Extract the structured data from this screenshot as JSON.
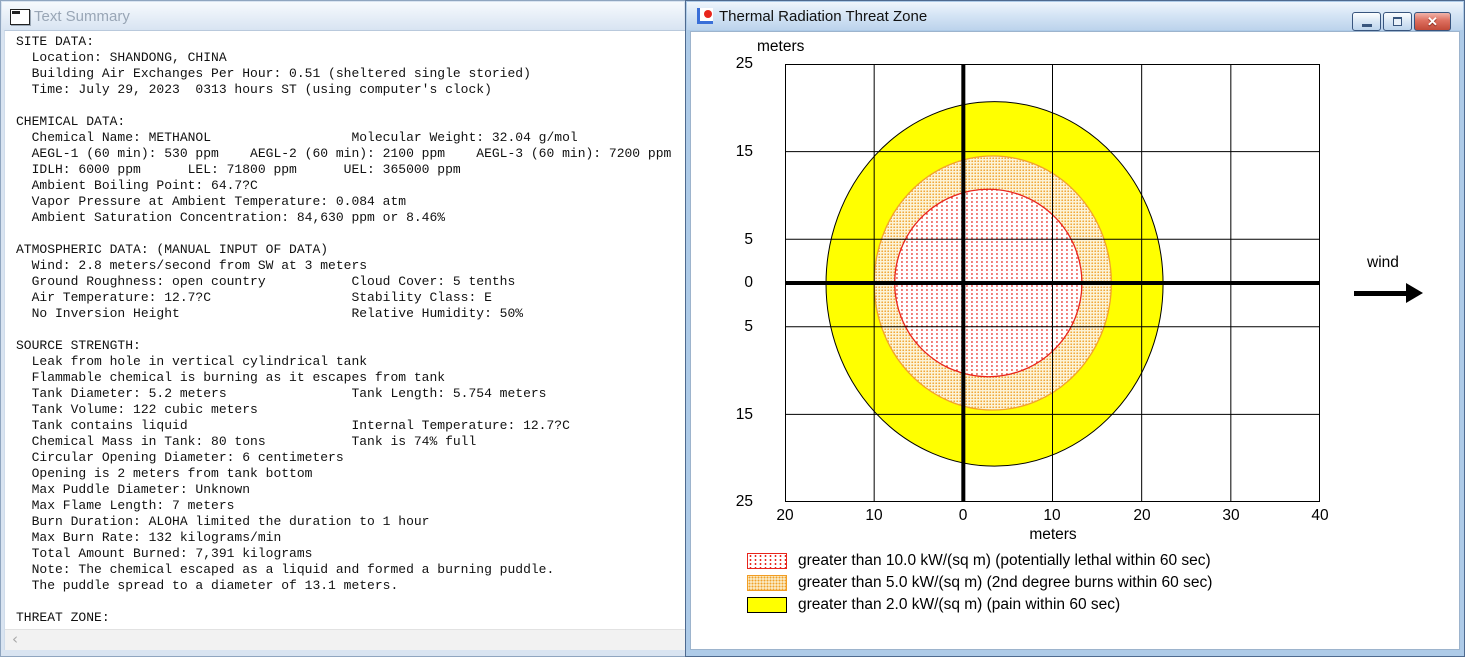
{
  "theme": {
    "active_titlebar": "#bcd3ec",
    "inactive_titlebar": "#d8e4f2",
    "close_button_red": "#c14a39",
    "zone_yellow": "#ffff00",
    "zone_orange": "#f2a32a",
    "zone_red": "#e8251c"
  },
  "left_window": {
    "title": "Text Summary",
    "scroll_left_glyph": "‹",
    "summary_lines": [
      "SITE DATA:",
      "  Location: SHANDONG, CHINA",
      "  Building Air Exchanges Per Hour: 0.51 (sheltered single storied)",
      "  Time: July 29, 2023  0313 hours ST (using computer's clock)",
      "",
      "CHEMICAL DATA:",
      "  Chemical Name: METHANOL                  Molecular Weight: 32.04 g/mol",
      "  AEGL-1 (60 min): 530 ppm    AEGL-2 (60 min): 2100 ppm    AEGL-3 (60 min): 7200 ppm",
      "  IDLH: 6000 ppm      LEL: 71800 ppm      UEL: 365000 ppm",
      "  Ambient Boiling Point: 64.7?C",
      "  Vapor Pressure at Ambient Temperature: 0.084 atm",
      "  Ambient Saturation Concentration: 84,630 ppm or 8.46%",
      "",
      "ATMOSPHERIC DATA: (MANUAL INPUT OF DATA)",
      "  Wind: 2.8 meters/second from SW at 3 meters",
      "  Ground Roughness: open country           Cloud Cover: 5 tenths",
      "  Air Temperature: 12.7?C                  Stability Class: E",
      "  No Inversion Height                      Relative Humidity: 50%",
      "",
      "SOURCE STRENGTH:",
      "  Leak from hole in vertical cylindrical tank",
      "  Flammable chemical is burning as it escapes from tank",
      "  Tank Diameter: 5.2 meters                Tank Length: 5.754 meters",
      "  Tank Volume: 122 cubic meters",
      "  Tank contains liquid                     Internal Temperature: 12.7?C",
      "  Chemical Mass in Tank: 80 tons           Tank is 74% full",
      "  Circular Opening Diameter: 6 centimeters",
      "  Opening is 2 meters from tank bottom",
      "  Max Puddle Diameter: Unknown",
      "  Max Flame Length: 7 meters",
      "  Burn Duration: ALOHA limited the duration to 1 hour",
      "  Max Burn Rate: 132 kilograms/min",
      "  Total Amount Burned: 7,391 kilograms",
      "  Note: The chemical escaped as a liquid and formed a burning puddle.",
      "  The puddle spread to a diameter of 13.1 meters.",
      "",
      "THREAT ZONE:"
    ]
  },
  "right_window": {
    "title": "Thermal Radiation Threat Zone",
    "close_glyph": "✕",
    "wind_label": "wind"
  },
  "chart_data": {
    "type": "area",
    "title": "Thermal Radiation Threat Zone",
    "x_axis_label": "meters",
    "y_axis_label": "meters",
    "xlim": [
      -20,
      40
    ],
    "ylim": [
      -25,
      25
    ],
    "grid": true,
    "x_gridlines_m": [
      -20,
      -10,
      0,
      10,
      20,
      30,
      40
    ],
    "y_gridlines_m": [
      25,
      15,
      5,
      0,
      -5,
      -15,
      -25
    ],
    "x_tick_labels": [
      "20",
      "10",
      "0",
      "10",
      "20",
      "30",
      "40"
    ],
    "y_tick_labels": [
      "25",
      "15",
      "5",
      "0",
      "5",
      "15",
      "25"
    ],
    "wind_direction": "left-to-right",
    "legend_position": "bottom-left",
    "zones": [
      {
        "name": "potentially-lethal",
        "legend": "greater than 10.0 kW/(sq m) (potentially lethal within 60 sec)",
        "threshold_kw_per_sq_m": 10.0,
        "center_m": [
          2.8,
          0
        ],
        "rx_m": 10.5,
        "ry_m": 10.7,
        "color": "#e8251c",
        "pattern": "red-dots"
      },
      {
        "name": "second-degree-burns",
        "legend": "greater than 5.0 kW/(sq m) (2nd degree burns within 60 sec)",
        "threshold_kw_per_sq_m": 5.0,
        "center_m": [
          3.3,
          0
        ],
        "rx_m": 13.3,
        "ry_m": 14.5,
        "color": "#f2a32a",
        "pattern": "orange-dots"
      },
      {
        "name": "pain",
        "legend": "greater than 2.0 kW/(sq m) (pain within 60 sec)",
        "threshold_kw_per_sq_m": 2.0,
        "center_m": [
          3.5,
          -0.1
        ],
        "rx_m": 18.9,
        "ry_m": 20.8,
        "color": "#ffff00",
        "pattern": "solid"
      }
    ]
  }
}
